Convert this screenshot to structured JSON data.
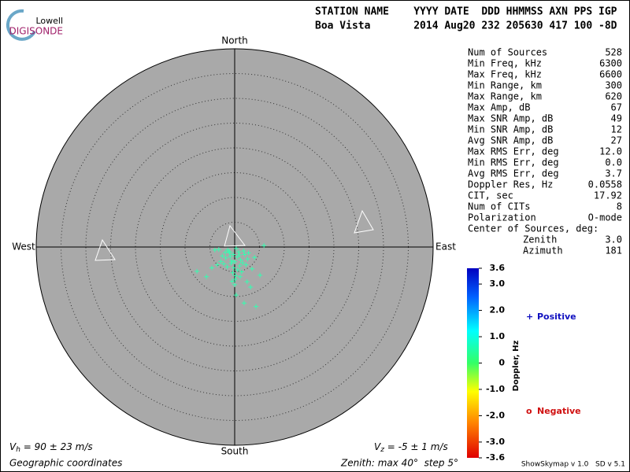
{
  "header": {
    "logo_top": "Lowell",
    "logo_bottom": "DIGISONDE",
    "line1": "STATION NAME    YYYY DATE  DDD HHMMSS AXN PPS IGP",
    "line2": "Boa Vista       2014 Aug20 232 205630 417 100 -8D"
  },
  "stats": [
    [
      "Num of Sources",
      "528"
    ],
    [
      "Min Freq, kHz",
      "6300"
    ],
    [
      "Max Freq, kHz",
      "6600"
    ],
    [
      "Min Range, km",
      "300"
    ],
    [
      "Max Range, km",
      "620"
    ],
    [
      "Max Amp, dB",
      "67"
    ],
    [
      "Max SNR Amp, dB",
      "49"
    ],
    [
      "Min SNR Amp, dB",
      "12"
    ],
    [
      "Avg SNR Amp, dB",
      "27"
    ],
    [
      "Max RMS Err, deg",
      "12.0"
    ],
    [
      "Min RMS Err, deg",
      "0.0"
    ],
    [
      "Avg RMS Err, deg",
      "3.7"
    ],
    [
      "Doppler Res, Hz",
      "0.0558"
    ],
    [
      "CIT, sec",
      "17.92"
    ],
    [
      "Num of CITs",
      "8"
    ],
    [
      "Polarization",
      "O-mode"
    ]
  ],
  "center": {
    "title": "Center of Sources, deg:",
    "rows": [
      [
        "Zenith",
        "3.0"
      ],
      [
        "Azimuth",
        "181"
      ]
    ]
  },
  "velocity": {
    "horizontal": {
      "symbol": "V",
      "sub": "h",
      "text": " = 90 ± 23 m/s"
    },
    "vertical": {
      "symbol": "V",
      "sub": "z",
      "text": " = -5 ± 1 m/s"
    }
  },
  "footer": {
    "left": "Geographic coordinates",
    "right": "Zenith: max 40°  step 5°",
    "version": "ShowSkymap v 1.0   SD v 5.1"
  },
  "chart_data": {
    "type": "scatter",
    "directions": {
      "north": "North",
      "south": "South",
      "east": "East",
      "west": "West"
    },
    "rlim": [
      0,
      40
    ],
    "rings": [
      5,
      10,
      15,
      20,
      25,
      30,
      35
    ],
    "color": "#33ffb0",
    "series": [
      {
        "x": [
          -0.3,
          0.5,
          -1.0,
          1.2,
          -1.8,
          2.0,
          -2.5,
          0.0,
          0.8,
          -0.6,
          1.6,
          -1.4,
          2.6,
          -2.2,
          0.3,
          -0.9,
          1.0,
          -0.2,
          0.6,
          -1.5,
          1.8,
          -2.8,
          2.3,
          -0.4,
          0.2,
          1.4,
          -1.1,
          0.9,
          -0.7,
          0.1,
          1.1,
          -1.9,
          2.8,
          -3.2,
          3.5,
          -7.6,
          -5.7,
          -4.0,
          5.9,
          4.3,
          1.9,
          0.3,
          5.1,
          3.2,
          -4.6,
          4.0,
          -3.5,
          2.5,
          0.0,
          -0.5
        ],
        "y": [
          -1.5,
          -2.0,
          -1.2,
          -2.6,
          -2.2,
          -1.5,
          -1.8,
          -3.0,
          -1.0,
          -2.8,
          -3.2,
          -0.6,
          -2.4,
          -3.4,
          -0.3,
          -1.9,
          -3.8,
          -4.2,
          -4.6,
          -4.0,
          -0.8,
          -2.9,
          -3.6,
          -5.2,
          -5.8,
          -5.0,
          -0.9,
          -1.6,
          -3.3,
          -6.5,
          -6.0,
          -1.1,
          -1.2,
          -0.5,
          -4.4,
          -4.9,
          -6.0,
          -0.6,
          0.3,
          -12.0,
          -11.3,
          -9.7,
          -5.7,
          -8.1,
          -4.2,
          -2.1,
          -3.6,
          -7.0,
          -7.6,
          -6.9
        ]
      }
    ],
    "colorbar": {
      "label": "Doppler, Hz",
      "lim": [
        -3.6,
        3.6
      ],
      "ticks": [
        {
          "value": 3.6,
          "label": "3.6"
        },
        {
          "value": 3,
          "label": "3.0"
        },
        {
          "value": 2,
          "label": "2.0"
        },
        {
          "value": 1,
          "label": "1.0"
        },
        0,
        {
          "value": -1,
          "label": "-1.0"
        },
        {
          "value": -2,
          "label": "-2.0"
        },
        {
          "value": -3,
          "label": "-3.0"
        },
        -3.6
      ]
    },
    "legend": [
      {
        "marker": "+",
        "name": "Positive",
        "color": "#1010c0"
      },
      {
        "marker": "o",
        "name": "Negative",
        "color": "#d01010"
      }
    ]
  }
}
